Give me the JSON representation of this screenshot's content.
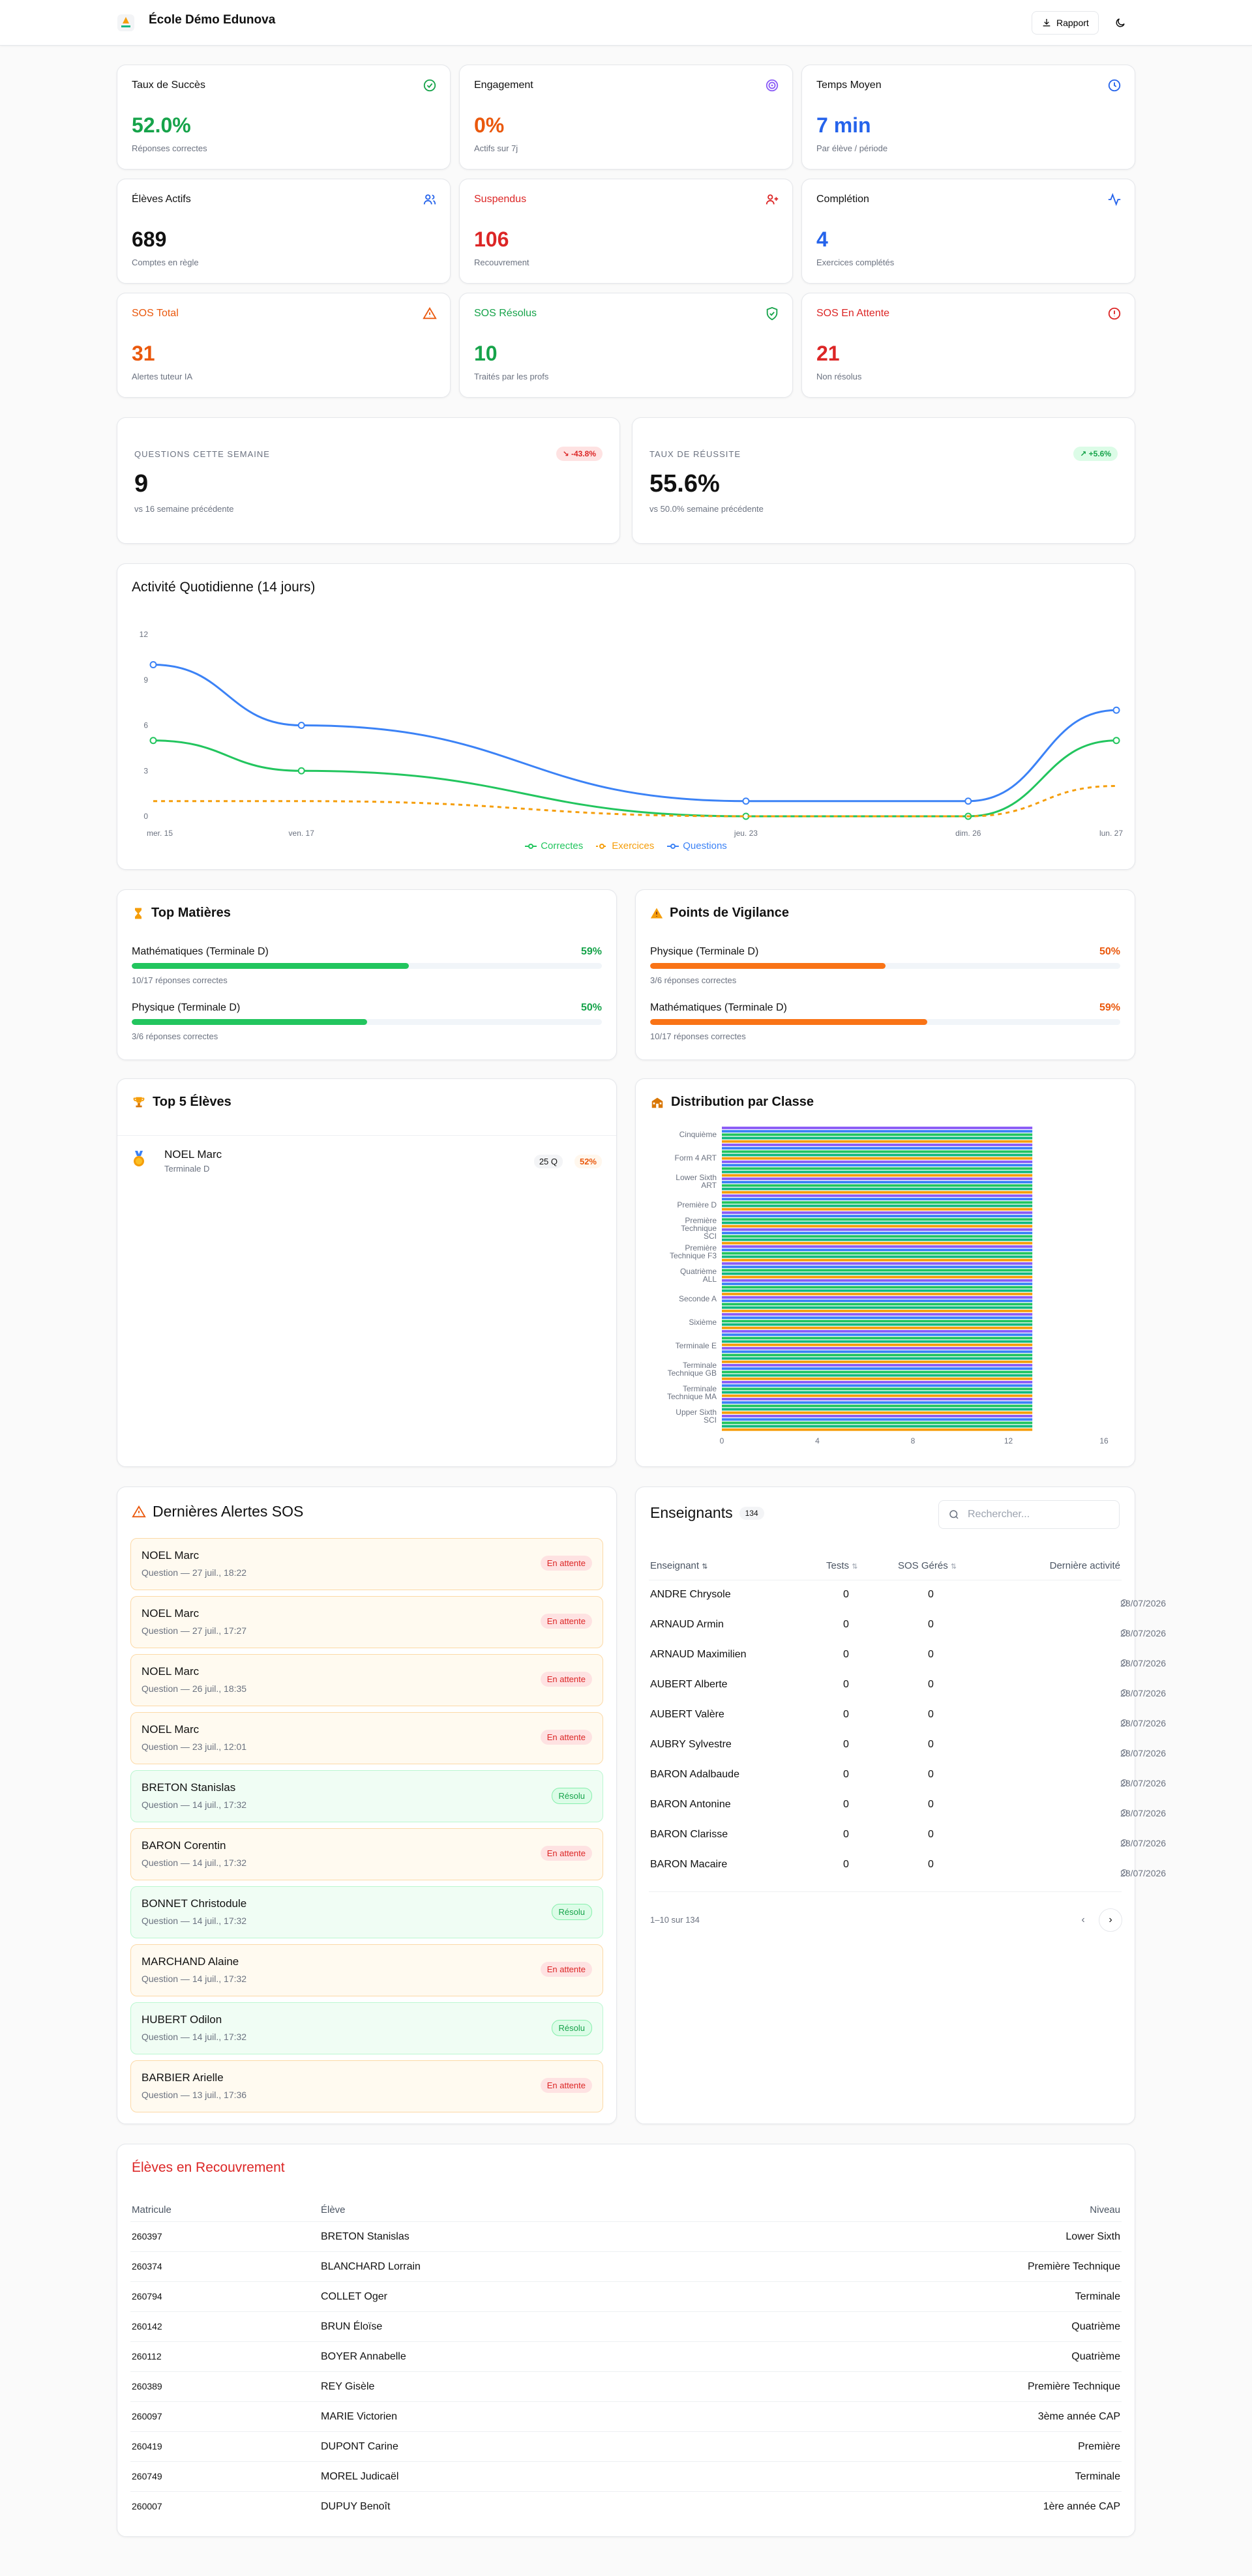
{
  "app": {
    "title": "École Démo Edunova",
    "report_label": "Rapport"
  },
  "kpis": [
    {
      "label": "Taux de Succès",
      "value": "52.0%",
      "sub": "Réponses correctes",
      "color": "#16a34a",
      "icon": "check-circle-icon"
    },
    {
      "label": "Engagement",
      "value": "0%",
      "sub": "Actifs sur 7j",
      "color": "#ea580c",
      "icon": "target-icon"
    },
    {
      "label": "Temps Moyen",
      "value": "7 min",
      "sub": "Par élève / période",
      "color": "#2563eb",
      "icon": "clock-icon"
    },
    {
      "label": "Élèves Actifs",
      "value": "689",
      "sub": "Comptes en règle",
      "color": "#111111",
      "icon": "users-icon"
    },
    {
      "label": "Suspendus",
      "value": "106",
      "sub": "Recouvrement",
      "color": "#dc2626",
      "icon": "user-plus-icon"
    },
    {
      "label": "Complétion",
      "value": "4",
      "sub": "Exercices complétés",
      "color": "#2563eb",
      "icon": "activity-icon"
    },
    {
      "label": "SOS Total",
      "value": "31",
      "sub": "Alertes tuteur IA",
      "color": "#ea580c",
      "icon": "warning-icon"
    },
    {
      "label": "SOS Résolus",
      "value": "10",
      "sub": "Traités par les profs",
      "color": "#16a34a",
      "icon": "shield-check-icon"
    },
    {
      "label": "SOS En Attente",
      "value": "21",
      "sub": "Non résolus",
      "color": "#dc2626",
      "icon": "alert-circle-icon"
    }
  ],
  "weekly": [
    {
      "label": "QUESTIONS CETTE SEMAINE",
      "value": "9",
      "sub": "vs 16 semaine précédente",
      "badge": "-43.8%",
      "trend": "down"
    },
    {
      "label": "TAUX DE RÉUSSITE",
      "value": "55.6%",
      "sub": "vs 50.0% semaine précédente",
      "badge": "+5.6%",
      "trend": "up"
    }
  ],
  "activity": {
    "title": "Activité Quotidienne (14 jours)"
  },
  "chart_data": [
    {
      "type": "line",
      "title": "Activité Quotidienne (14 jours)",
      "x": [
        "mer. 15",
        "ven. 17",
        "jeu. 23",
        "dim. 26",
        "lun. 27"
      ],
      "ylim": [
        0,
        12
      ],
      "yticks": [
        0,
        3,
        6,
        9,
        12
      ],
      "series": [
        {
          "name": "Correctes",
          "values": [
            5,
            3,
            0,
            0,
            5
          ],
          "color": "#22c55e",
          "dashed": false
        },
        {
          "name": "Exercices",
          "values": [
            1,
            1,
            0,
            0,
            2
          ],
          "color": "#f59e0b",
          "dashed": true
        },
        {
          "name": "Questions",
          "values": [
            10,
            6,
            1,
            1,
            7
          ],
          "color": "#3b82f6",
          "dashed": false
        }
      ],
      "legend": "bottom",
      "grid": false
    },
    {
      "type": "bar",
      "orientation": "horizontal",
      "title": "Distribution par Classe",
      "categories": [
        "Cinquième",
        "Form 4 ART",
        "Lower Sixth ART",
        "Première D",
        "Première Technique SCI",
        "Première Technique F3",
        "Quatrième ALL",
        "Seconde A",
        "Sixième",
        "Terminale E",
        "Terminale Technique GB",
        "Terminale Technique MA",
        "Upper Sixth SCI"
      ],
      "xlim": [
        0,
        16
      ],
      "xticks": [
        0,
        4,
        8,
        12,
        16
      ],
      "bar_count": 90,
      "value": 13,
      "colors": [
        "#8b5cf6",
        "#3b82f6",
        "#22c55e",
        "#10b981",
        "#f59e0b"
      ]
    }
  ],
  "top_subjects": {
    "title": "Top Matières",
    "items": [
      {
        "name": "Mathématiques (Terminale D)",
        "pct": "59%",
        "value": 59,
        "note": "10/17 réponses correctes"
      },
      {
        "name": "Physique (Terminale D)",
        "pct": "50%",
        "value": 50,
        "note": "3/6 réponses correctes"
      }
    ]
  },
  "vigilance": {
    "title": "Points de Vigilance",
    "items": [
      {
        "name": "Physique (Terminale D)",
        "pct": "50%",
        "value": 50,
        "note": "3/6 réponses correctes"
      },
      {
        "name": "Mathématiques (Terminale D)",
        "pct": "59%",
        "value": 59,
        "note": "10/17 réponses correctes"
      }
    ]
  },
  "top_students": {
    "title": "Top 5 Élèves",
    "items": [
      {
        "name": "NOEL Marc",
        "class": "Terminale D",
        "questions": "25 Q",
        "score": "52%"
      }
    ]
  },
  "distribution": {
    "title": "Distribution par Classe"
  },
  "sos": {
    "title": "Dernières Alertes SOS",
    "items": [
      {
        "name": "NOEL Marc",
        "date": "Question — 27 juil., 18:22",
        "status": "En attente",
        "resolved": false
      },
      {
        "name": "NOEL Marc",
        "date": "Question — 27 juil., 17:27",
        "status": "En attente",
        "resolved": false
      },
      {
        "name": "NOEL Marc",
        "date": "Question — 26 juil., 18:35",
        "status": "En attente",
        "resolved": false
      },
      {
        "name": "NOEL Marc",
        "date": "Question — 23 juil., 12:01",
        "status": "En attente",
        "resolved": false
      },
      {
        "name": "BRETON Stanislas",
        "date": "Question — 14 juil., 17:32",
        "status": "Résolu",
        "resolved": true
      },
      {
        "name": "BARON Corentin",
        "date": "Question — 14 juil., 17:32",
        "status": "En attente",
        "resolved": false
      },
      {
        "name": "BONNET Christodule",
        "date": "Question — 14 juil., 17:32",
        "status": "Résolu",
        "resolved": true
      },
      {
        "name": "MARCHAND Alaine",
        "date": "Question — 14 juil., 17:32",
        "status": "En attente",
        "resolved": false
      },
      {
        "name": "HUBERT Odilon",
        "date": "Question — 14 juil., 17:32",
        "status": "Résolu",
        "resolved": true
      },
      {
        "name": "BARBIER Arielle",
        "date": "Question — 13 juil., 17:36",
        "status": "En attente",
        "resolved": false
      }
    ]
  },
  "teachers": {
    "title": "Enseignants",
    "count": "134",
    "search_placeholder": "Rechercher...",
    "columns": [
      "Enseignant",
      "Tests",
      "SOS Gérés",
      "Dernière activité"
    ],
    "rows": [
      {
        "name": "ANDRE Chrysole",
        "tests": "0",
        "sos": "0",
        "last": "28/07/2026"
      },
      {
        "name": "ARNAUD Armin",
        "tests": "0",
        "sos": "0",
        "last": "28/07/2026"
      },
      {
        "name": "ARNAUD Maximilien",
        "tests": "0",
        "sos": "0",
        "last": "28/07/2026"
      },
      {
        "name": "AUBERT Alberte",
        "tests": "0",
        "sos": "0",
        "last": "28/07/2026"
      },
      {
        "name": "AUBERT Valère",
        "tests": "0",
        "sos": "0",
        "last": "28/07/2026"
      },
      {
        "name": "AUBRY Sylvestre",
        "tests": "0",
        "sos": "0",
        "last": "28/07/2026"
      },
      {
        "name": "BARON Adalbaude",
        "tests": "0",
        "sos": "0",
        "last": "28/07/2026"
      },
      {
        "name": "BARON Antonine",
        "tests": "0",
        "sos": "0",
        "last": "28/07/2026"
      },
      {
        "name": "BARON Clarisse",
        "tests": "0",
        "sos": "0",
        "last": "28/07/2026"
      },
      {
        "name": "BARON Macaire",
        "tests": "0",
        "sos": "0",
        "last": "28/07/2026"
      }
    ],
    "pagination": "1–10 sur 134"
  },
  "recovery": {
    "title": "Élèves en Recouvrement",
    "columns": [
      "Matricule",
      "Élève",
      "Niveau"
    ],
    "rows": [
      {
        "id": "260397",
        "name": "BRETON Stanislas",
        "level": "Lower Sixth"
      },
      {
        "id": "260374",
        "name": "BLANCHARD Lorrain",
        "level": "Première Technique"
      },
      {
        "id": "260794",
        "name": "COLLET Oger",
        "level": "Terminale"
      },
      {
        "id": "260142",
        "name": "BRUN Éloïse",
        "level": "Quatrième"
      },
      {
        "id": "260112",
        "name": "BOYER Annabelle",
        "level": "Quatrième"
      },
      {
        "id": "260389",
        "name": "REY Gisèle",
        "level": "Première Technique"
      },
      {
        "id": "260097",
        "name": "MARIE Victorien",
        "level": "3ème année CAP"
      },
      {
        "id": "260419",
        "name": "DUPONT Carine",
        "level": "Première"
      },
      {
        "id": "260749",
        "name": "MOREL Judicaël",
        "level": "Terminale"
      },
      {
        "id": "260007",
        "name": "DUPUY Benoît",
        "level": "1ère année CAP"
      }
    ]
  }
}
